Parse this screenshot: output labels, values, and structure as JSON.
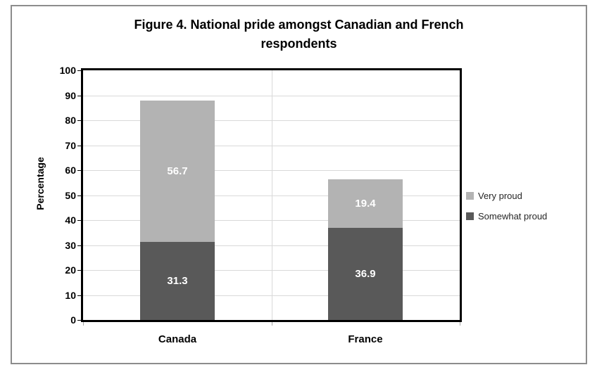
{
  "figure": {
    "title_line1": "Figure 4. National pride amongst Canadian and French",
    "title_line2": "respondents"
  },
  "chart_data": {
    "type": "bar",
    "subtype": "stacked-column",
    "title": "Figure 4. National pride amongst Canadian and French respondents",
    "categories": [
      "Canada",
      "France"
    ],
    "series": [
      {
        "name": "Somewhat proud",
        "values": [
          31.3,
          36.9
        ],
        "color": "#595959"
      },
      {
        "name": "Very proud",
        "values": [
          56.7,
          19.4
        ],
        "color": "#b3b3b3"
      }
    ],
    "xlabel": "",
    "ylabel": "Percentage",
    "ylim": [
      0,
      100
    ],
    "yticks": [
      0,
      10,
      20,
      30,
      40,
      50,
      60,
      70,
      80,
      90,
      100
    ],
    "grid": true,
    "gridline_color": "#d9d9d9",
    "data_labels": true,
    "data_label_color": "#ffffff",
    "legend_position": "right",
    "legend_items": [
      {
        "label": "Very proud",
        "color": "#b3b3b3"
      },
      {
        "label": "Somewhat proud",
        "color": "#595959"
      }
    ]
  },
  "colors": {
    "frame_border": "#8c8c8c",
    "plot_border": "#000000",
    "background": "#ffffff"
  }
}
